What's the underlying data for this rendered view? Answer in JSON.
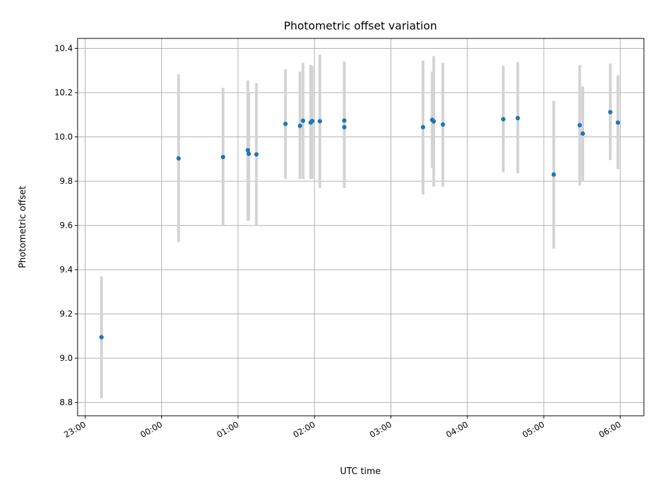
{
  "chart_data": {
    "type": "scatter",
    "title": "Photometric offset variation",
    "xlabel": "UTC time",
    "ylabel": "Photometric offset",
    "x_axis": {
      "unit": "hours since 00:00 UTC",
      "range": [
        -1.1,
        6.31
      ],
      "ticks": [
        {
          "value": -1,
          "label": "23:00"
        },
        {
          "value": 0,
          "label": "00:00"
        },
        {
          "value": 1,
          "label": "01:00"
        },
        {
          "value": 2,
          "label": "02:00"
        },
        {
          "value": 3,
          "label": "03:00"
        },
        {
          "value": 4,
          "label": "04:00"
        },
        {
          "value": 5,
          "label": "05:00"
        },
        {
          "value": 6,
          "label": "06:00"
        }
      ]
    },
    "y_axis": {
      "range": [
        8.74,
        10.445
      ],
      "ticks": [
        8.8,
        9.0,
        9.2,
        9.4,
        9.6,
        9.8,
        10.0,
        10.2,
        10.4
      ],
      "tick_labels": [
        "8.8",
        "9.0",
        "9.2",
        "9.4",
        "9.6",
        "9.8",
        "10.0",
        "10.2",
        "10.4"
      ]
    },
    "grid": true,
    "colors": {
      "point": "#1f77b4",
      "errorbar": "#d3d3d3"
    },
    "points": [
      {
        "x": -0.787,
        "y": 9.095,
        "ylow": 8.82,
        "yhigh": 9.37
      },
      {
        "x": 0.222,
        "y": 9.903,
        "ylow": 9.525,
        "yhigh": 10.283
      },
      {
        "x": 0.803,
        "y": 9.909,
        "ylow": 9.6,
        "yhigh": 10.222
      },
      {
        "x": 1.128,
        "y": 9.94,
        "ylow": 9.62,
        "yhigh": 10.255
      },
      {
        "x": 1.14,
        "y": 9.924,
        "ylow": 9.625,
        "yhigh": 10.2
      },
      {
        "x": 1.24,
        "y": 9.921,
        "ylow": 9.6,
        "yhigh": 10.243
      },
      {
        "x": 1.62,
        "y": 10.059,
        "ylow": 9.81,
        "yhigh": 10.305
      },
      {
        "x": 1.81,
        "y": 10.05,
        "ylow": 9.81,
        "yhigh": 10.295
      },
      {
        "x": 1.85,
        "y": 10.073,
        "ylow": 9.81,
        "yhigh": 10.335
      },
      {
        "x": 1.95,
        "y": 10.065,
        "ylow": 9.81,
        "yhigh": 10.325
      },
      {
        "x": 1.97,
        "y": 10.072,
        "ylow": 9.81,
        "yhigh": 10.32
      },
      {
        "x": 2.07,
        "y": 10.071,
        "ylow": 9.77,
        "yhigh": 10.372
      },
      {
        "x": 2.39,
        "y": 10.074,
        "ylow": 9.77,
        "yhigh": 10.34
      },
      {
        "x": 2.39,
        "y": 10.044,
        "ylow": 9.77,
        "yhigh": 10.34
      },
      {
        "x": 3.42,
        "y": 10.044,
        "ylow": 9.74,
        "yhigh": 10.345
      },
      {
        "x": 3.54,
        "y": 10.077,
        "ylow": 9.86,
        "yhigh": 10.295
      },
      {
        "x": 3.56,
        "y": 10.07,
        "ylow": 9.775,
        "yhigh": 10.365
      },
      {
        "x": 3.68,
        "y": 10.056,
        "ylow": 9.775,
        "yhigh": 10.335
      },
      {
        "x": 4.47,
        "y": 10.08,
        "ylow": 9.84,
        "yhigh": 10.322
      },
      {
        "x": 4.66,
        "y": 10.085,
        "ylow": 9.835,
        "yhigh": 10.338
      },
      {
        "x": 5.13,
        "y": 9.83,
        "ylow": 9.495,
        "yhigh": 10.163
      },
      {
        "x": 5.47,
        "y": 10.053,
        "ylow": 9.78,
        "yhigh": 10.325
      },
      {
        "x": 5.51,
        "y": 10.015,
        "ylow": 9.8,
        "yhigh": 10.228
      },
      {
        "x": 5.87,
        "y": 10.112,
        "ylow": 9.895,
        "yhigh": 10.332
      },
      {
        "x": 5.97,
        "y": 10.065,
        "ylow": 9.855,
        "yhigh": 10.278
      }
    ]
  }
}
